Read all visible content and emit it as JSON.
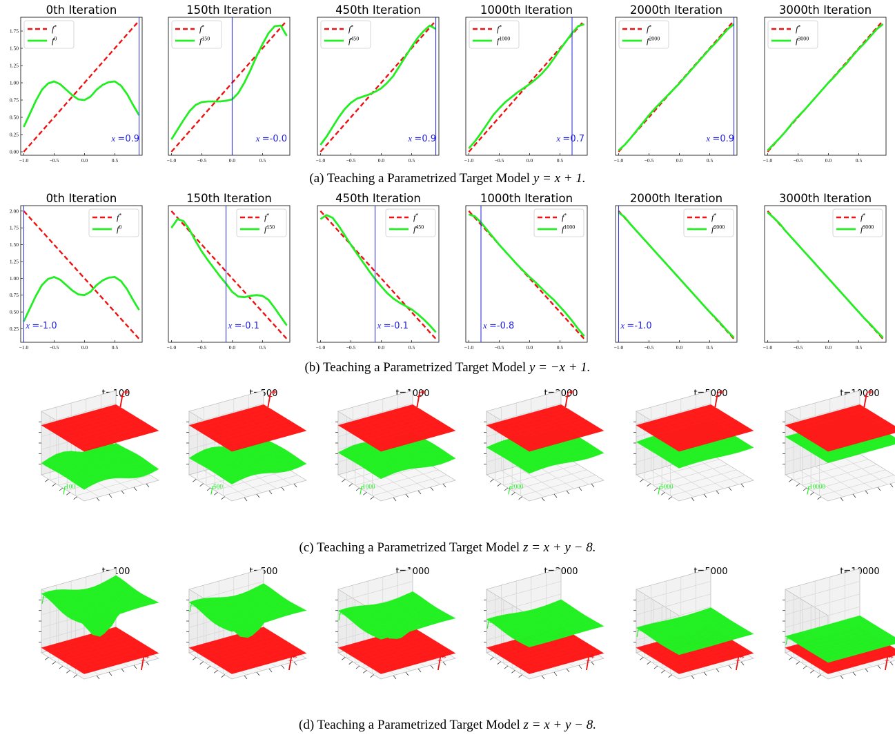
{
  "colors": {
    "target": "#ee1111",
    "student": "#22ee22",
    "teacher": "#1f1fdd",
    "plane_red": "#ff1a1a",
    "plane_green": "#22f022"
  },
  "captions": {
    "a": {
      "prefix": "(a)  Teaching a Parametrized Target Model ",
      "math": "y = x + 1."
    },
    "b": {
      "prefix": "(b)  Teaching a Parametrized Target Model ",
      "math": "y = −x + 1."
    },
    "c": {
      "prefix": "(c)  Teaching a Parametrized Target Model ",
      "math": "z = x + y − 8."
    },
    "d": {
      "prefix": "(d)  Teaching a Parametrized Target Model ",
      "math": "z = x + y − 8."
    }
  },
  "chart_data": [
    {
      "type": "line",
      "row": "a",
      "titles": [
        "0th Iteration",
        "150th Iteration",
        "450th Iteration",
        "1000th Iteration",
        "2000th Iteration",
        "3000th Iteration"
      ],
      "legend_target": "f*",
      "legend_student": [
        "f0",
        "f150",
        "f450",
        "f1000",
        "f2000",
        "f3000"
      ],
      "legend_position": "upper-left",
      "xlim": [
        -1.05,
        0.95
      ],
      "ylim": [
        -0.05,
        1.95
      ],
      "xticks": [
        -1.0,
        -0.5,
        0.0,
        0.5
      ],
      "xtick_labels": [
        "−1.0",
        "−0.5",
        "0.0",
        "0.5"
      ],
      "yticks": [
        0.0,
        0.25,
        0.5,
        0.75,
        1.0,
        1.25,
        1.5,
        1.75
      ],
      "ytick_labels": [
        "0.00",
        "0.25",
        "0.50",
        "0.75",
        "1.00",
        "1.25",
        "1.50",
        "1.75"
      ],
      "x": [
        -1.0,
        -0.9,
        -0.8,
        -0.7,
        -0.6,
        -0.5,
        -0.4,
        -0.3,
        -0.2,
        -0.1,
        0.0,
        0.1,
        0.2,
        0.3,
        0.4,
        0.5,
        0.6,
        0.7,
        0.8,
        0.9
      ],
      "target": [
        0.0,
        0.1,
        0.2,
        0.3,
        0.4,
        0.5,
        0.6,
        0.7,
        0.8,
        0.9,
        1.0,
        1.1,
        1.2,
        1.3,
        1.4,
        1.5,
        1.6,
        1.7,
        1.8,
        1.9
      ],
      "student": [
        [
          0.36,
          0.55,
          0.74,
          0.9,
          0.99,
          1.02,
          0.98,
          0.9,
          0.82,
          0.76,
          0.75,
          0.8,
          0.9,
          0.97,
          1.01,
          1.02,
          0.96,
          0.84,
          0.68,
          0.53
        ],
        [
          0.18,
          0.32,
          0.46,
          0.59,
          0.68,
          0.72,
          0.73,
          0.73,
          0.73,
          0.74,
          0.76,
          0.85,
          1.0,
          1.18,
          1.38,
          1.56,
          1.72,
          1.82,
          1.83,
          1.68
        ],
        [
          0.1,
          0.22,
          0.36,
          0.5,
          0.62,
          0.71,
          0.77,
          0.8,
          0.83,
          0.87,
          0.92,
          1.0,
          1.1,
          1.24,
          1.38,
          1.52,
          1.65,
          1.75,
          1.83,
          1.78
        ],
        [
          0.05,
          0.15,
          0.27,
          0.4,
          0.53,
          0.63,
          0.72,
          0.79,
          0.86,
          0.92,
          0.98,
          1.05,
          1.13,
          1.23,
          1.35,
          1.48,
          1.6,
          1.72,
          1.82,
          1.85
        ],
        [
          0.02,
          0.1,
          0.2,
          0.31,
          0.42,
          0.53,
          0.63,
          0.72,
          0.81,
          0.9,
          0.99,
          1.09,
          1.19,
          1.29,
          1.39,
          1.49,
          1.58,
          1.68,
          1.78,
          1.85
        ],
        [
          0.02,
          0.11,
          0.2,
          0.3,
          0.41,
          0.51,
          0.6,
          0.7,
          0.8,
          0.9,
          1.0,
          1.09,
          1.19,
          1.28,
          1.39,
          1.49,
          1.58,
          1.68,
          1.78,
          1.85
        ]
      ],
      "marker_x": [
        0.9,
        0.0,
        0.9,
        0.7,
        0.9,
        null
      ],
      "marker_labels": [
        "x =0.9",
        "x =-0.0",
        "x =0.9",
        "x =0.7",
        "x =0.9",
        ""
      ]
    },
    {
      "type": "line",
      "row": "b",
      "titles": [
        "0th Iteration",
        "150th Iteration",
        "450th Iteration",
        "1000th Iteration",
        "2000th Iteration",
        "3000th Iteration"
      ],
      "legend_target": "f*",
      "legend_student": [
        "f0",
        "f150",
        "f450",
        "f1000",
        "f2000",
        "f3000"
      ],
      "legend_position": "upper-right",
      "xlim": [
        -1.05,
        0.95
      ],
      "ylim": [
        0.05,
        2.08
      ],
      "xticks": [
        -1.0,
        -0.5,
        0.0,
        0.5
      ],
      "xtick_labels": [
        "−1.0",
        "−0.5",
        "0.0",
        "0.5"
      ],
      "yticks": [
        0.25,
        0.5,
        0.75,
        1.0,
        1.25,
        1.5,
        1.75,
        2.0
      ],
      "ytick_labels": [
        "0.25",
        "0.50",
        "0.75",
        "1.00",
        "1.25",
        "1.50",
        "1.75",
        "2.00"
      ],
      "x": [
        -1.0,
        -0.9,
        -0.8,
        -0.7,
        -0.6,
        -0.5,
        -0.4,
        -0.3,
        -0.2,
        -0.1,
        0.0,
        0.1,
        0.2,
        0.3,
        0.4,
        0.5,
        0.6,
        0.7,
        0.8,
        0.9
      ],
      "target": [
        2.0,
        1.9,
        1.8,
        1.7,
        1.6,
        1.5,
        1.4,
        1.3,
        1.2,
        1.1,
        1.0,
        0.9,
        0.8,
        0.7,
        0.6,
        0.5,
        0.4,
        0.3,
        0.2,
        0.1
      ],
      "student": [
        [
          0.36,
          0.55,
          0.74,
          0.9,
          0.99,
          1.02,
          0.98,
          0.9,
          0.82,
          0.76,
          0.75,
          0.8,
          0.9,
          0.97,
          1.01,
          1.02,
          0.96,
          0.84,
          0.68,
          0.53
        ],
        [
          1.75,
          1.88,
          1.85,
          1.72,
          1.55,
          1.4,
          1.27,
          1.15,
          1.03,
          0.92,
          0.8,
          0.73,
          0.72,
          0.74,
          0.75,
          0.74,
          0.68,
          0.56,
          0.43,
          0.3
        ],
        [
          1.88,
          1.94,
          1.9,
          1.78,
          1.64,
          1.5,
          1.37,
          1.24,
          1.11,
          0.99,
          0.88,
          0.78,
          0.7,
          0.64,
          0.59,
          0.54,
          0.47,
          0.39,
          0.3,
          0.2
        ],
        [
          1.95,
          1.92,
          1.83,
          1.72,
          1.61,
          1.5,
          1.4,
          1.3,
          1.2,
          1.11,
          1.02,
          0.94,
          0.85,
          0.76,
          0.68,
          0.58,
          0.48,
          0.37,
          0.25,
          0.14
        ],
        [
          1.98,
          1.91,
          1.8,
          1.7,
          1.6,
          1.5,
          1.4,
          1.3,
          1.2,
          1.1,
          1.0,
          0.9,
          0.8,
          0.7,
          0.6,
          0.5,
          0.41,
          0.31,
          0.21,
          0.12
        ],
        [
          1.98,
          1.9,
          1.81,
          1.7,
          1.6,
          1.5,
          1.4,
          1.3,
          1.2,
          1.1,
          1.0,
          0.9,
          0.8,
          0.7,
          0.6,
          0.5,
          0.4,
          0.31,
          0.21,
          0.12
        ]
      ],
      "marker_x": [
        -1.0,
        -0.1,
        -0.1,
        -0.8,
        -1.0,
        null
      ],
      "marker_labels": [
        "x =-1.0",
        "x =-0.1",
        "x =-0.1",
        "x =-0.8",
        "x =-1.0",
        ""
      ]
    },
    {
      "type": "surface",
      "row": "c",
      "titles": [
        "t=100",
        "t=500",
        "t=1000",
        "t=2000",
        "t=5000",
        "t=10000"
      ],
      "target_label": "f*",
      "student_labels": [
        "f100",
        "f500",
        "f1000",
        "f2000",
        "f5000",
        "f10000"
      ],
      "target_position": "above"
    },
    {
      "type": "surface",
      "row": "d",
      "titles": [
        "t=100",
        "t=500",
        "t=1000",
        "t=2000",
        "t=5000",
        "t=10000"
      ],
      "target_label": "f*",
      "student_labels": [
        "f100",
        "f500",
        "f1000",
        "f2000",
        "f5000",
        "f10000"
      ],
      "target_position": "below"
    }
  ]
}
